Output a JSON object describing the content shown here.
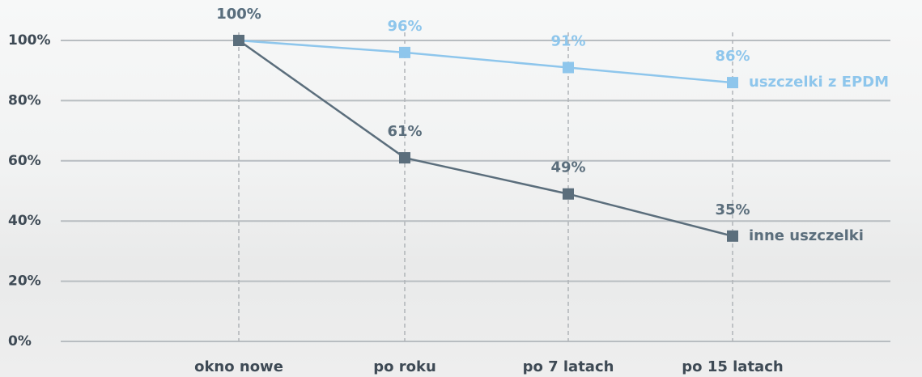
{
  "chart_data": {
    "type": "line",
    "categories": [
      "okno nowe",
      "po roku",
      "po 7 latach",
      "po 15 latach"
    ],
    "series": [
      {
        "name": "uszczelki z EPDM",
        "color": "#8ec6ec",
        "values": [
          100,
          96,
          91,
          86
        ],
        "value_labels": [
          "100%",
          "96%",
          "91%",
          "86%"
        ]
      },
      {
        "name": "inne uszczelki",
        "color": "#5b6e7c",
        "values": [
          100,
          61,
          49,
          35
        ],
        "value_labels": [
          "100%",
          "61%",
          "49%",
          "35%"
        ]
      }
    ],
    "ylim": [
      0,
      100
    ],
    "yticks": [
      {
        "value": 0,
        "label": "0%"
      },
      {
        "value": 20,
        "label": "20%"
      },
      {
        "value": 40,
        "label": "40%"
      },
      {
        "value": 60,
        "label": "60%"
      },
      {
        "value": 80,
        "label": "80%"
      },
      {
        "value": 100,
        "label": "100%"
      }
    ],
    "grid": true
  }
}
